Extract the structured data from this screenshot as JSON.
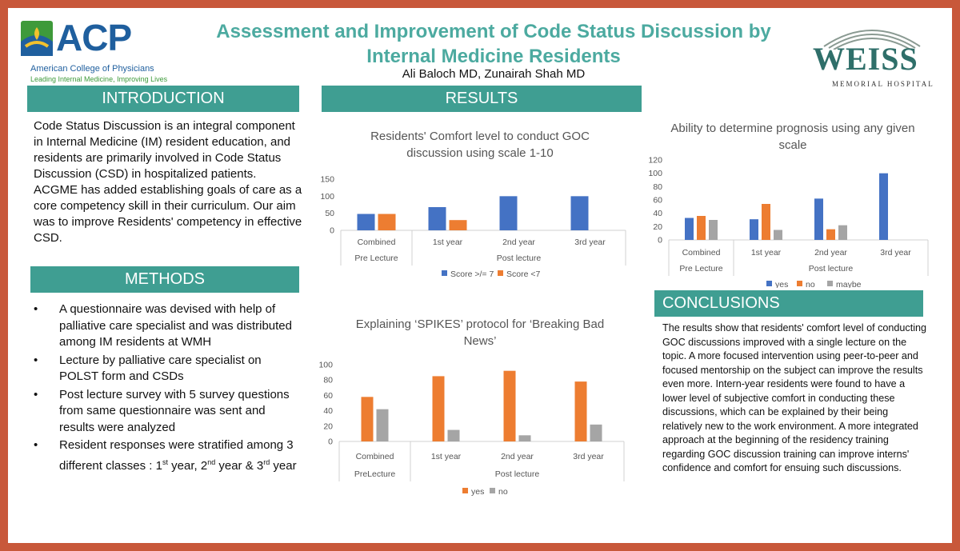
{
  "title": "Assessment and Improvement of Code Status Discussion by Internal Medicine Residents",
  "authors": "Ali Baloch MD, Zunairah Shah MD",
  "logos": {
    "acp_name": "ACP",
    "acp_full": "American College of Physicians",
    "acp_tagline": "Leading Internal Medicine, Improving Lives",
    "weiss_name": "WEISS",
    "weiss_sub": "MEMORIAL HOSPITAL"
  },
  "sections": {
    "introduction": {
      "heading": "INTRODUCTION",
      "text": "Code Status Discussion is an integral component in Internal Medicine (IM) resident education, and residents are primarily involved in Code Status Discussion (CSD) in hospitalized patients. ACGME has added establishing goals of care as a core competency skill in their curriculum. Our aim was to improve Residents' competency in effective CSD."
    },
    "methods": {
      "heading": "METHODS",
      "items": [
        "A questionnaire was devised with help of palliative care specialist and was distributed among IM residents at WMH",
        "Lecture by palliative care specialist on POLST form and CSDs",
        "Post lecture survey with 5 survey questions from same questionnaire was sent and results were analyzed"
      ],
      "last_item": {
        "text1": "Resident responses were stratified among 3 different classes : 1",
        "sup1": "st",
        "text2": " year, 2",
        "sup2": "nd",
        "text3": " year & 3",
        "sup3": "rd",
        "text4": " year"
      }
    },
    "results": {
      "heading": "RESULTS"
    },
    "conclusions": {
      "heading": "CONCLUSIONS",
      "text": "The results show that residents' comfort level of conducting GOC discussions improved with a single lecture on the topic. A more focused intervention using peer-to-peer and focused mentorship on the subject can improve the results even more. Intern-year residents were found to have a lower level of subjective comfort in conducting these discussions, which can be explained by their being relatively new to the work environment. A more integrated approach at the beginning of the residency training regarding GOC discussion training can improve interns' confidence and comfort for ensuing such discussions."
    }
  },
  "colors": {
    "accent": "#3f9e92",
    "title": "#4caaa0",
    "frame": "#c8583a",
    "blue": "#4472c4",
    "orange": "#ed7d31",
    "gray": "#a5a5a5"
  },
  "chart_data": [
    {
      "type": "bar",
      "title": "Residents' Comfort level to conduct GOC discussion using scale 1-10",
      "categories": [
        "Combined",
        "1st year",
        "2nd year",
        "3rd year"
      ],
      "groups": [
        {
          "label": "Pre Lecture",
          "span": 1
        },
        {
          "label": "Post lecture",
          "span": 3
        }
      ],
      "series": [
        {
          "name": "Score >/= 7",
          "color": "#4472c4",
          "values": [
            48,
            68,
            100,
            100
          ]
        },
        {
          "name": "Score <7",
          "color": "#ed7d31",
          "values": [
            48,
            30,
            0,
            0
          ]
        }
      ],
      "ylim": [
        0,
        150
      ],
      "yticks": [
        0,
        50,
        100,
        150
      ],
      "legend": "bottom",
      "grid": false
    },
    {
      "type": "bar",
      "title": "Ability to determine prognosis using any given scale",
      "categories": [
        "Combined",
        "1st year",
        "2nd year",
        "3rd year"
      ],
      "groups": [
        {
          "label": "Pre Lecture",
          "span": 1
        },
        {
          "label": "Post lecture",
          "span": 3
        }
      ],
      "series": [
        {
          "name": "yes",
          "color": "#4472c4",
          "values": [
            33,
            31,
            62,
            100
          ]
        },
        {
          "name": "no",
          "color": "#ed7d31",
          "values": [
            36,
            54,
            16,
            0
          ]
        },
        {
          "name": "maybe",
          "color": "#a5a5a5",
          "values": [
            30,
            15,
            22,
            0
          ]
        }
      ],
      "ylim": [
        0,
        120
      ],
      "yticks": [
        0,
        20,
        40,
        60,
        80,
        100,
        120
      ],
      "legend": "bottom",
      "grid": false
    },
    {
      "type": "bar",
      "title": "Explaining ‘SPIKES’ protocol for ‘Breaking Bad News’",
      "categories": [
        "Combined",
        "1st year",
        "2nd year",
        "3rd year"
      ],
      "groups": [
        {
          "label": "PreLecture",
          "span": 1
        },
        {
          "label": "Post lecture",
          "span": 3
        }
      ],
      "series": [
        {
          "name": "yes",
          "color": "#ed7d31",
          "values": [
            58,
            85,
            92,
            78
          ]
        },
        {
          "name": "no",
          "color": "#a5a5a5",
          "values": [
            42,
            15,
            8,
            22
          ]
        }
      ],
      "ylim": [
        0,
        100
      ],
      "yticks": [
        0,
        20,
        40,
        60,
        80,
        100
      ],
      "legend": "bottom",
      "grid": false
    }
  ]
}
